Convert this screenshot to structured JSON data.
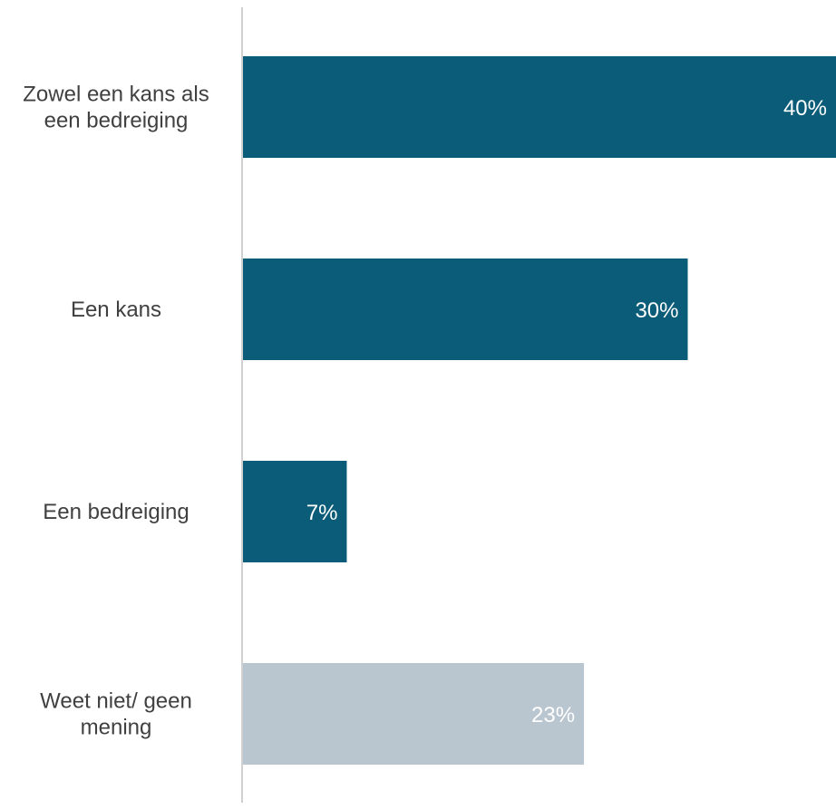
{
  "chart_data": {
    "type": "bar",
    "orientation": "horizontal",
    "categories": [
      [
        "Zowel een kans als",
        "een bedreiging"
      ],
      [
        "Een kans"
      ],
      [
        "Een bedreiging"
      ],
      [
        "Weet niet/ geen",
        "mening"
      ]
    ],
    "values": [
      40,
      30,
      7,
      23
    ],
    "value_labels": [
      "40%",
      "30%",
      "7%",
      "23%"
    ],
    "unit": "%",
    "xlim": [
      0,
      40
    ],
    "bar_colors": [
      "#0b5c78",
      "#0b5c78",
      "#0b5c78",
      "#b9c6cf"
    ],
    "grid": false,
    "legend": "none"
  }
}
